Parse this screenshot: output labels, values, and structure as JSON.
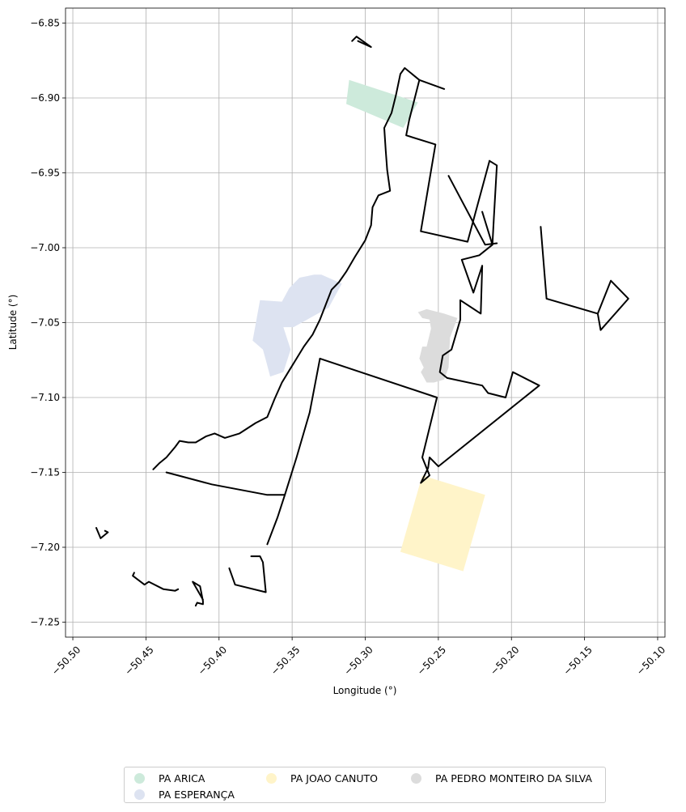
{
  "chart_data": {
    "type": "map",
    "xlabel": "Longitude (°)",
    "ylabel": "Latitude (°)",
    "xlim": [
      -50.505,
      -50.095
    ],
    "ylim": [
      -7.26,
      -6.84
    ],
    "x_ticks": [
      -50.5,
      -50.45,
      -50.4,
      -50.35,
      -50.3,
      -50.25,
      -50.2,
      -50.15,
      -50.1
    ],
    "x_tick_labels": [
      "−50.50",
      "−50.45",
      "−50.40",
      "−50.35",
      "−50.30",
      "−50.25",
      "−50.20",
      "−50.15",
      "−50.10"
    ],
    "y_ticks": [
      -6.85,
      -6.9,
      -6.95,
      -7.0,
      -7.05,
      -7.1,
      -7.15,
      -7.2,
      -7.25
    ],
    "y_tick_labels": [
      "−6.85",
      "−6.90",
      "−6.95",
      "−7.00",
      "−7.05",
      "−7.10",
      "−7.15",
      "−7.20",
      "−7.25"
    ],
    "grid": true,
    "legend_placement": "bottom-center",
    "settlements": [
      {
        "name": "PA ARICA",
        "color": "#cdeadb",
        "polygons": [
          [
            [
              -50.311,
              -6.888
            ],
            [
              -50.264,
              -6.903
            ],
            [
              -50.274,
              -6.92
            ],
            [
              -50.313,
              -6.904
            ]
          ]
        ]
      },
      {
        "name": "PA ESPERANÇA",
        "color": "#dde3f1",
        "polygons": [
          [
            [
              -50.372,
              -7.035
            ],
            [
              -50.357,
              -7.036
            ],
            [
              -50.352,
              -7.027
            ],
            [
              -50.345,
              -7.02
            ],
            [
              -50.335,
              -7.018
            ],
            [
              -50.33,
              -7.018
            ],
            [
              -50.316,
              -7.024
            ],
            [
              -50.325,
              -7.04
            ],
            [
              -50.349,
              -7.053
            ],
            [
              -50.356,
              -7.053
            ],
            [
              -50.351,
              -7.068
            ],
            [
              -50.356,
              -7.083
            ],
            [
              -50.365,
              -7.086
            ],
            [
              -50.368,
              -7.075
            ],
            [
              -50.37,
              -7.068
            ],
            [
              -50.377,
              -7.062
            ]
          ]
        ]
      },
      {
        "name": "PA JOAO CANUTO",
        "color": "#fff4c9",
        "polygons": [
          [
            [
              -50.261,
              -7.152
            ],
            [
              -50.218,
              -7.165
            ],
            [
              -50.233,
              -7.216
            ],
            [
              -50.276,
              -7.203
            ]
          ]
        ]
      },
      {
        "name": "PA PEDRO MONTEIRO DA SILVA",
        "color": "#dcdcdc",
        "polygons": [
          [
            [
              -50.264,
              -7.043
            ],
            [
              -50.261,
              -7.047
            ],
            [
              -50.256,
              -7.048
            ],
            [
              -50.255,
              -7.054
            ],
            [
              -50.258,
              -7.066
            ],
            [
              -50.261,
              -7.066
            ],
            [
              -50.263,
              -7.074
            ],
            [
              -50.26,
              -7.08
            ],
            [
              -50.262,
              -7.083
            ],
            [
              -50.258,
              -7.09
            ],
            [
              -50.253,
              -7.09
            ],
            [
              -50.246,
              -7.088
            ],
            [
              -50.243,
              -7.08
            ],
            [
              -50.242,
              -7.06
            ],
            [
              -50.237,
              -7.047
            ],
            [
              -50.246,
              -7.044
            ],
            [
              -50.258,
              -7.041
            ]
          ]
        ]
      }
    ],
    "boundary_lines": [
      [
        [
          -50.445,
          -7.148
        ],
        [
          -50.441,
          -7.144
        ],
        [
          -50.436,
          -7.14
        ],
        [
          -50.43,
          -7.133
        ],
        [
          -50.427,
          -7.129
        ],
        [
          -50.421,
          -7.13
        ],
        [
          -50.416,
          -7.13
        ],
        [
          -50.409,
          -7.126
        ],
        [
          -50.403,
          -7.124
        ],
        [
          -50.396,
          -7.127
        ],
        [
          -50.386,
          -7.124
        ],
        [
          -50.375,
          -7.117
        ],
        [
          -50.367,
          -7.113
        ],
        [
          -50.362,
          -7.101
        ],
        [
          -50.357,
          -7.09
        ],
        [
          -50.352,
          -7.082
        ],
        [
          -50.347,
          -7.074
        ],
        [
          -50.342,
          -7.066
        ],
        [
          -50.336,
          -7.058
        ],
        [
          -50.331,
          -7.048
        ],
        [
          -50.327,
          -7.038
        ],
        [
          -50.323,
          -7.028
        ],
        [
          -50.318,
          -7.023
        ],
        [
          -50.313,
          -7.016
        ],
        [
          -50.307,
          -7.006
        ],
        [
          -50.3,
          -6.995
        ],
        [
          -50.296,
          -6.985
        ],
        [
          -50.295,
          -6.973
        ],
        [
          -50.291,
          -6.965
        ],
        [
          -50.283,
          -6.962
        ],
        [
          -50.285,
          -6.948
        ],
        [
          -50.286,
          -6.935
        ],
        [
          -50.287,
          -6.92
        ],
        [
          -50.282,
          -6.91
        ],
        [
          -50.279,
          -6.898
        ],
        [
          -50.276,
          -6.884
        ],
        [
          -50.273,
          -6.88
        ],
        [
          -50.263,
          -6.888
        ],
        [
          -50.246,
          -6.894
        ]
      ],
      [
        [
          -50.263,
          -6.888
        ],
        [
          -50.27,
          -6.915
        ],
        [
          -50.272,
          -6.925
        ],
        [
          -50.252,
          -6.931
        ],
        [
          -50.262,
          -6.989
        ],
        [
          -50.23,
          -6.996
        ],
        [
          -50.215,
          -6.942
        ]
      ],
      [
        [
          -50.215,
          -6.942
        ],
        [
          -50.21,
          -6.945
        ],
        [
          -50.212,
          -6.98
        ],
        [
          -50.213,
          -6.998
        ]
      ],
      [
        [
          -50.22,
          -6.976
        ],
        [
          -50.213,
          -6.998
        ],
        [
          -50.222,
          -7.005
        ],
        [
          -50.234,
          -7.008
        ],
        [
          -50.226,
          -7.03
        ],
        [
          -50.22,
          -7.012
        ],
        [
          -50.221,
          -7.044
        ],
        [
          -50.235,
          -7.035
        ],
        [
          -50.235,
          -7.048
        ],
        [
          -50.241,
          -7.068
        ],
        [
          -50.247,
          -7.072
        ],
        [
          -50.249,
          -7.083
        ],
        [
          -50.244,
          -7.087
        ],
        [
          -50.22,
          -7.092
        ],
        [
          -50.216,
          -7.097
        ],
        [
          -50.204,
          -7.1
        ],
        [
          -50.199,
          -7.083
        ],
        [
          -50.181,
          -7.092
        ],
        [
          -50.25,
          -7.146
        ],
        [
          -50.256,
          -7.14
        ],
        [
          -50.257,
          -7.147
        ],
        [
          -50.262,
          -7.157
        ],
        [
          -50.256,
          -7.152
        ],
        [
          -50.261,
          -7.14
        ],
        [
          -50.251,
          -7.1
        ],
        [
          -50.331,
          -7.074
        ],
        [
          -50.338,
          -7.11
        ],
        [
          -50.347,
          -7.14
        ],
        [
          -50.355,
          -7.165
        ],
        [
          -50.36,
          -7.18
        ],
        [
          -50.367,
          -7.198
        ]
      ],
      [
        [
          -50.355,
          -7.165
        ],
        [
          -50.367,
          -7.165
        ],
        [
          -50.405,
          -7.158
        ],
        [
          -50.432,
          -7.151
        ],
        [
          -50.436,
          -7.15
        ]
      ],
      [
        [
          -50.378,
          -7.206
        ],
        [
          -50.372,
          -7.206
        ],
        [
          -50.37,
          -7.21
        ],
        [
          -50.368,
          -7.23
        ],
        [
          -50.389,
          -7.225
        ],
        [
          -50.393,
          -7.214
        ]
      ],
      [
        [
          -50.243,
          -6.952
        ],
        [
          -50.218,
          -6.998
        ],
        [
          -50.21,
          -6.997
        ]
      ],
      [
        [
          -50.18,
          -6.986
        ],
        [
          -50.176,
          -7.034
        ],
        [
          -50.141,
          -7.044
        ],
        [
          -50.139,
          -7.055
        ],
        [
          -50.12,
          -7.034
        ],
        [
          -50.132,
          -7.022
        ],
        [
          -50.141,
          -7.044
        ]
      ],
      [
        [
          -50.309,
          -6.862
        ],
        [
          -50.306,
          -6.859
        ],
        [
          -50.296,
          -6.866
        ],
        [
          -50.305,
          -6.862
        ]
      ],
      [
        [
          -50.478,
          -7.189
        ],
        [
          -50.476,
          -7.19
        ],
        [
          -50.481,
          -7.194
        ],
        [
          -50.484,
          -7.187
        ]
      ],
      [
        [
          -50.458,
          -7.217
        ],
        [
          -50.459,
          -7.219
        ],
        [
          -50.451,
          -7.225
        ],
        [
          -50.448,
          -7.223
        ],
        [
          -50.438,
          -7.228
        ],
        [
          -50.43,
          -7.229
        ],
        [
          -50.428,
          -7.228
        ]
      ],
      [
        [
          -50.416,
          -7.239
        ],
        [
          -50.415,
          -7.237
        ],
        [
          -50.411,
          -7.238
        ],
        [
          -50.411,
          -7.236
        ],
        [
          -50.413,
          -7.226
        ],
        [
          -50.418,
          -7.223
        ],
        [
          -50.411,
          -7.235
        ]
      ]
    ]
  }
}
